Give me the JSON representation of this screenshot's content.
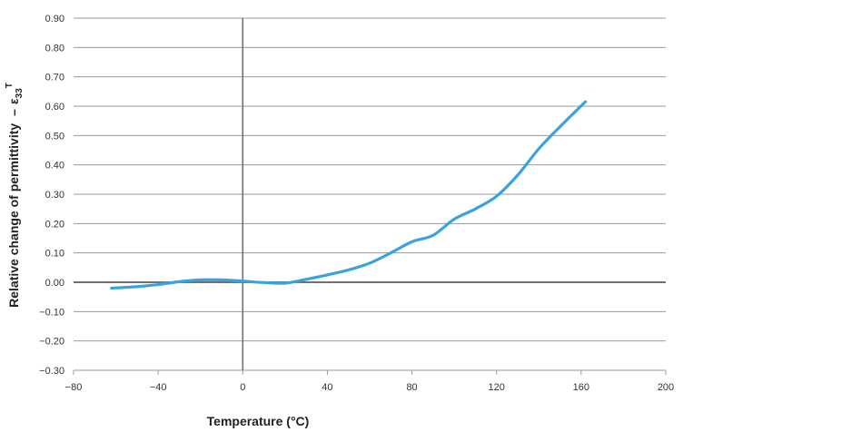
{
  "chart_data": {
    "type": "line",
    "title": "",
    "xlabel": "Temperature (°C)",
    "ylabel": "Relative change of permittivity",
    "ylabel_symbol": "ε",
    "ylabel_symbol_sub": "33",
    "ylabel_symbol_sup": "T",
    "ylabel_dash": "–",
    "xlim": [
      -80,
      200
    ],
    "ylim": [
      -0.3,
      0.9
    ],
    "x_ticks": [
      "−80",
      "−40",
      "0",
      "40",
      "80",
      "120",
      "160",
      "200"
    ],
    "y_ticks": [
      "0.90",
      "0.80",
      "0.70",
      "0.60",
      "0.50",
      "0.40",
      "0.30",
      "0.20",
      "0.10",
      "0.00",
      "−0.10",
      "−0.20",
      "−0.30"
    ],
    "grid": true,
    "legend": false,
    "series": [
      {
        "color": "#3aa3dd",
        "x": [
          -62,
          -50,
          -40,
          -30,
          -20,
          -10,
          0,
          10,
          20,
          30,
          40,
          50,
          60,
          70,
          80,
          90,
          100,
          110,
          120,
          130,
          140,
          150,
          162
        ],
        "y": [
          -0.02,
          -0.015,
          -0.008,
          0.002,
          0.008,
          0.008,
          0.004,
          -0.001,
          -0.003,
          0.01,
          0.025,
          0.042,
          0.065,
          0.1,
          0.138,
          0.16,
          0.215,
          0.25,
          0.293,
          0.365,
          0.455,
          0.53,
          0.615
        ]
      }
    ]
  }
}
